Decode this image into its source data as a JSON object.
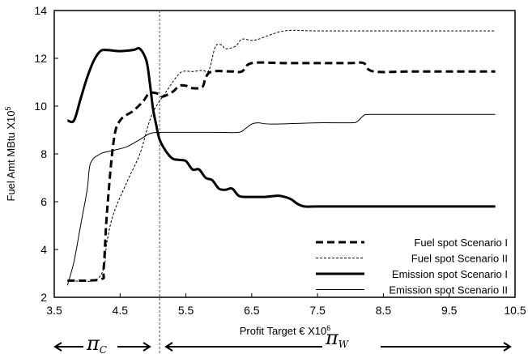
{
  "chart_data": {
    "type": "line",
    "title": "",
    "xlabel": "Profit Target € X10",
    "xlabel_sup": "6",
    "ylabel": "Fuel Amt MBtu X10",
    "ylabel_sup": "5",
    "xlim": [
      3.5,
      10.5
    ],
    "ylim": [
      2,
      14
    ],
    "xticks": [
      "3.5",
      "4.5",
      "5.5",
      "6.5",
      "7.5",
      "8.5",
      "9.5",
      "10.5"
    ],
    "yticks": [
      "2",
      "4",
      "6",
      "8",
      "10",
      "12",
      "14"
    ],
    "grid": false,
    "legend_position": "bottom-right",
    "divider_x": 5.1,
    "region_labels": [
      {
        "symbol": "π",
        "subscript": "C",
        "arrow_from": 3.5,
        "arrow_to": 5.05
      },
      {
        "symbol": "π",
        "subscript": "W",
        "arrow_from": 5.1,
        "arrow_to": 10.5
      }
    ],
    "series": [
      {
        "name": "Fuel spot Scenario I",
        "style": "thick-dashed",
        "color": "#000000",
        "points": [
          [
            3.7,
            2.7
          ],
          [
            4.2,
            2.75
          ],
          [
            4.25,
            3.2
          ],
          [
            4.3,
            5.5
          ],
          [
            4.4,
            8.5
          ],
          [
            4.5,
            9.4
          ],
          [
            4.7,
            9.8
          ],
          [
            4.85,
            10.2
          ],
          [
            4.95,
            10.55
          ],
          [
            5.1,
            10.5
          ],
          [
            5.15,
            10.4
          ],
          [
            5.3,
            10.6
          ],
          [
            5.4,
            10.85
          ],
          [
            5.5,
            10.85
          ],
          [
            5.6,
            10.75
          ],
          [
            5.75,
            10.8
          ],
          [
            5.8,
            11.2
          ],
          [
            5.9,
            11.45
          ],
          [
            6.2,
            11.45
          ],
          [
            6.35,
            11.45
          ],
          [
            6.5,
            11.8
          ],
          [
            7.0,
            11.8
          ],
          [
            7.5,
            11.8
          ],
          [
            8.0,
            11.8
          ],
          [
            8.2,
            11.8
          ],
          [
            8.35,
            11.45
          ],
          [
            9.0,
            11.45
          ],
          [
            10.2,
            11.45
          ]
        ]
      },
      {
        "name": "Fuel spot Scenario II",
        "style": "thin-dashed",
        "color": "#000000",
        "points": [
          [
            3.7,
            2.7
          ],
          [
            4.1,
            2.7
          ],
          [
            4.25,
            3.2
          ],
          [
            4.3,
            4.3
          ],
          [
            4.4,
            5.5
          ],
          [
            4.6,
            6.8
          ],
          [
            4.8,
            8.0
          ],
          [
            4.95,
            9.4
          ],
          [
            5.05,
            10.0
          ],
          [
            5.2,
            10.6
          ],
          [
            5.35,
            11.2
          ],
          [
            5.45,
            11.45
          ],
          [
            5.6,
            11.45
          ],
          [
            5.75,
            11.5
          ],
          [
            5.85,
            11.5
          ],
          [
            5.95,
            12.5
          ],
          [
            6.05,
            12.55
          ],
          [
            6.1,
            12.4
          ],
          [
            6.25,
            12.5
          ],
          [
            6.35,
            12.8
          ],
          [
            6.5,
            12.75
          ],
          [
            6.6,
            12.8
          ],
          [
            7.0,
            13.15
          ],
          [
            7.5,
            13.15
          ],
          [
            8.5,
            13.15
          ],
          [
            10.2,
            13.15
          ]
        ]
      },
      {
        "name": "Emission spot Scenario I",
        "style": "thick-solid",
        "color": "#000000",
        "points": [
          [
            3.7,
            9.4
          ],
          [
            3.8,
            9.4
          ],
          [
            3.9,
            10.3
          ],
          [
            4.0,
            11.2
          ],
          [
            4.1,
            11.9
          ],
          [
            4.2,
            12.3
          ],
          [
            4.3,
            12.35
          ],
          [
            4.5,
            12.3
          ],
          [
            4.7,
            12.35
          ],
          [
            4.8,
            12.4
          ],
          [
            4.9,
            11.9
          ],
          [
            4.95,
            11.0
          ],
          [
            5.0,
            9.9
          ],
          [
            5.05,
            9.2
          ],
          [
            5.1,
            8.6
          ],
          [
            5.2,
            8.1
          ],
          [
            5.3,
            7.8
          ],
          [
            5.4,
            7.75
          ],
          [
            5.5,
            7.7
          ],
          [
            5.6,
            7.35
          ],
          [
            5.7,
            7.35
          ],
          [
            5.8,
            7.0
          ],
          [
            5.9,
            6.9
          ],
          [
            6.0,
            6.55
          ],
          [
            6.1,
            6.5
          ],
          [
            6.2,
            6.55
          ],
          [
            6.3,
            6.25
          ],
          [
            6.4,
            6.2
          ],
          [
            6.5,
            6.2
          ],
          [
            6.7,
            6.2
          ],
          [
            6.9,
            6.25
          ],
          [
            7.0,
            6.2
          ],
          [
            7.1,
            6.1
          ],
          [
            7.2,
            5.9
          ],
          [
            7.3,
            5.8
          ],
          [
            7.5,
            5.8
          ],
          [
            8.0,
            5.8
          ],
          [
            9.0,
            5.8
          ],
          [
            10.2,
            5.8
          ]
        ]
      },
      {
        "name": "Emission spot Scenario II",
        "style": "thin-solid",
        "color": "#000000",
        "points": [
          [
            3.7,
            2.5
          ],
          [
            3.8,
            3.5
          ],
          [
            3.9,
            5.0
          ],
          [
            4.0,
            6.5
          ],
          [
            4.05,
            7.6
          ],
          [
            4.2,
            8.0
          ],
          [
            4.4,
            8.15
          ],
          [
            4.6,
            8.3
          ],
          [
            4.8,
            8.6
          ],
          [
            4.95,
            8.85
          ],
          [
            5.1,
            8.9
          ],
          [
            5.5,
            8.9
          ],
          [
            6.0,
            8.9
          ],
          [
            6.3,
            8.9
          ],
          [
            6.4,
            9.05
          ],
          [
            6.5,
            9.25
          ],
          [
            6.6,
            9.3
          ],
          [
            6.8,
            9.25
          ],
          [
            7.5,
            9.3
          ],
          [
            8.0,
            9.3
          ],
          [
            8.1,
            9.35
          ],
          [
            8.2,
            9.6
          ],
          [
            8.3,
            9.65
          ],
          [
            9.0,
            9.65
          ],
          [
            10.2,
            9.65
          ]
        ]
      }
    ]
  }
}
